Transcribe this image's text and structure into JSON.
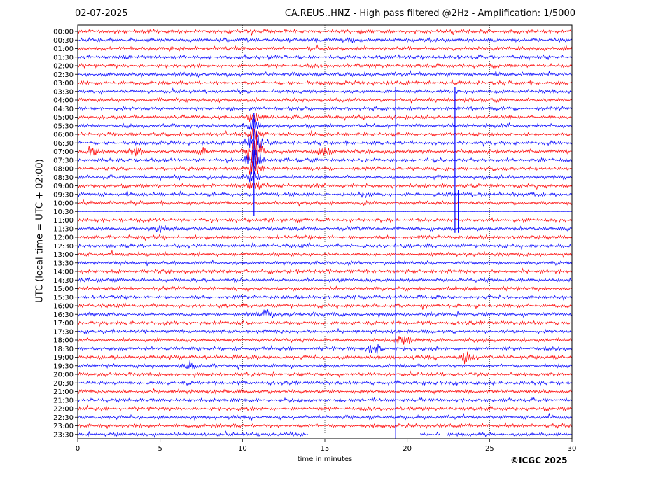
{
  "header": {
    "date": "02-07-2025",
    "title": "CA.REUS..HNZ - High pass filtered @2Hz - Amplification: 1/5000"
  },
  "chart_data": {
    "type": "line",
    "title": "CA.REUS..HNZ - High pass filtered @2Hz - Amplification: 1/5000",
    "date": "02-07-2025",
    "xlabel": "time in minutes",
    "ylabel": "UTC (local time = UTC + 02:00)",
    "xlim": [
      0,
      30
    ],
    "x_ticks": [
      "0",
      "5",
      "10",
      "15",
      "20",
      "25",
      "30"
    ],
    "x_tick_values": [
      0,
      5,
      10,
      15,
      20,
      25,
      30
    ],
    "grid": "vertical dotted lines at x ticks",
    "row_labels": [
      "00:00",
      "00:30",
      "01:00",
      "01:30",
      "02:00",
      "02:30",
      "03:00",
      "03:30",
      "04:00",
      "04:30",
      "05:00",
      "05:30",
      "06:00",
      "06:30",
      "07:00",
      "07:30",
      "08:00",
      "08:30",
      "09:00",
      "09:30",
      "10:00",
      "10:30",
      "11:00",
      "11:30",
      "12:00",
      "12:30",
      "13:00",
      "13:30",
      "14:00",
      "14:30",
      "15:00",
      "15:30",
      "16:00",
      "16:30",
      "17:00",
      "17:30",
      "18:00",
      "18:30",
      "19:00",
      "19:30",
      "20:00",
      "20:30",
      "21:00",
      "21:30",
      "22:00",
      "22:30",
      "23:00",
      "23:30"
    ],
    "row_colors": [
      "#ff0000",
      "#0000ff"
    ],
    "events": [
      {
        "row": "05:00",
        "minute": 10.7,
        "amplitude": 0.6
      },
      {
        "row": "05:30",
        "minute": 10.7,
        "amplitude": 0.6
      },
      {
        "row": "06:00",
        "minute": 10.7,
        "amplitude": 0.8
      },
      {
        "row": "06:30",
        "minute": 10.7,
        "amplitude": 1.8
      },
      {
        "row": "07:00",
        "minute": 10.7,
        "amplitude": 2.4
      },
      {
        "row": "07:00",
        "minute": 0.8,
        "amplitude": 0.5
      },
      {
        "row": "07:00",
        "minute": 3.6,
        "amplitude": 0.5
      },
      {
        "row": "07:00",
        "minute": 7.5,
        "amplitude": 0.4
      },
      {
        "row": "07:00",
        "minute": 15.0,
        "amplitude": 0.7
      },
      {
        "row": "07:30",
        "minute": 10.7,
        "amplitude": 1.6
      },
      {
        "row": "08:00",
        "minute": 10.7,
        "amplitude": 1.2
      },
      {
        "row": "08:30",
        "minute": 10.7,
        "amplitude": 0.8
      },
      {
        "row": "09:00",
        "minute": 10.7,
        "amplitude": 0.6
      },
      {
        "row": "09:30",
        "minute": 17.3,
        "amplitude": 0.4
      },
      {
        "row": "11:30",
        "minute": 5.0,
        "amplitude": 0.4
      },
      {
        "row": "16:30",
        "minute": 11.5,
        "amplitude": 0.4
      },
      {
        "row": "18:00",
        "minute": 19.8,
        "amplitude": 0.6
      },
      {
        "row": "18:30",
        "minute": 18.0,
        "amplitude": 0.9
      },
      {
        "row": "19:00",
        "minute": 23.6,
        "amplitude": 0.6
      },
      {
        "row": "19:30",
        "minute": 6.8,
        "amplitude": 0.4
      }
    ],
    "spikes": [
      {
        "from_row": "03:30",
        "to_row": "11:30",
        "minute": 22.9
      },
      {
        "from_row": "09:30",
        "to_row": "11:30",
        "minute": 23.1
      },
      {
        "from_row": "03:30",
        "to_row": "23:30",
        "minute": 19.3
      },
      {
        "from_row": "05:00",
        "to_row": "10:30",
        "minute": 10.7
      }
    ],
    "row_spans": {
      "23:30": [
        [
          0,
          14.0
        ],
        [
          20.8,
          22.0
        ],
        [
          22.4,
          30
        ]
      ]
    },
    "flat_rows": [
      "10:30"
    ]
  },
  "footer": {
    "credit": "©ICGC 2025"
  }
}
